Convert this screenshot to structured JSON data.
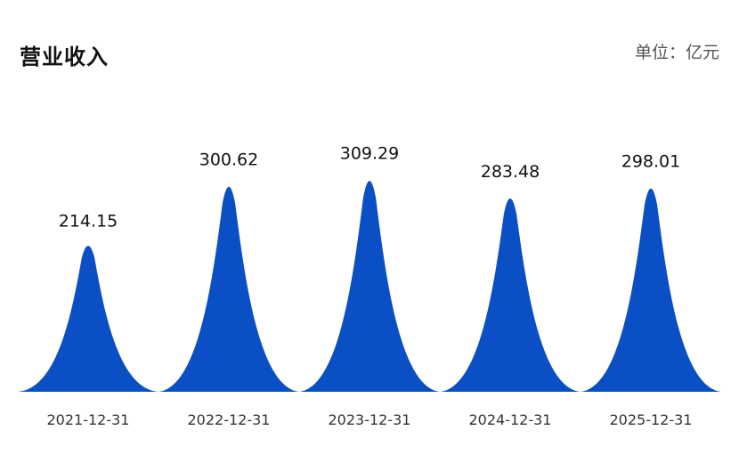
{
  "chart_data": {
    "type": "bar",
    "bar_shape": "pictorial-peak",
    "title": "营业收入",
    "unit": "单位：亿元",
    "categories": [
      "2021-12-31",
      "2022-12-31",
      "2023-12-31",
      "2024-12-31",
      "2025-12-31"
    ],
    "series": [
      {
        "values": [
          214.15,
          300.62,
          309.29,
          283.48,
          298.01
        ],
        "labels": [
          "214.15",
          "300.62",
          "309.29",
          "283.48",
          "298.01"
        ]
      }
    ],
    "ylim": [
      0,
      350
    ],
    "grid": false,
    "legend": "none",
    "color": "#0b4fc4"
  }
}
